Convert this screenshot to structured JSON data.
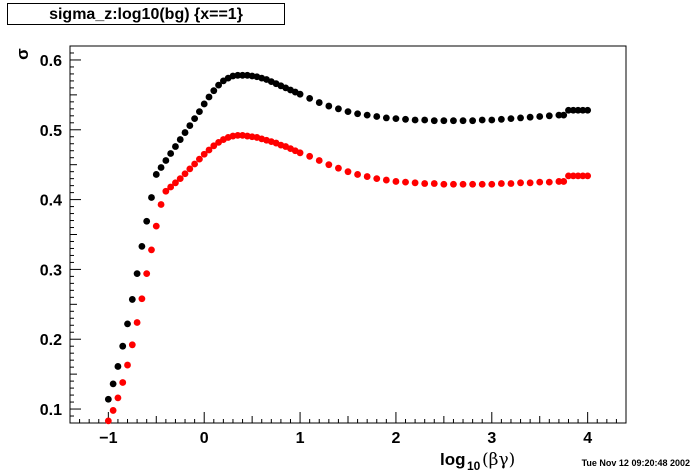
{
  "chart_data": {
    "type": "scatter",
    "title": "sigma_z:log10(bg) {x==1}",
    "xlabel": "log10(βγ)",
    "ylabel": "σ",
    "xlim": [
      -1.4,
      4.4
    ],
    "ylim": [
      0.08,
      0.62
    ],
    "x_ticks": [
      "−1",
      "0",
      "1",
      "2",
      "3",
      "4"
    ],
    "y_ticks": [
      "0.1",
      "0.2",
      "0.3",
      "0.4",
      "0.5",
      "0.6"
    ],
    "grid": false,
    "legend": "none",
    "timestamp": "Tue Nov 12 09:20:48 2002",
    "series": [
      {
        "color": "#000000",
        "points": [
          [
            -1.0,
            0.114
          ],
          [
            -0.95,
            0.136
          ],
          [
            -0.9,
            0.161
          ],
          [
            -0.85,
            0.19
          ],
          [
            -0.8,
            0.222
          ],
          [
            -0.75,
            0.257
          ],
          [
            -0.7,
            0.294
          ],
          [
            -0.65,
            0.333
          ],
          [
            -0.6,
            0.369
          ],
          [
            -0.55,
            0.403
          ],
          [
            -0.5,
            0.436
          ],
          [
            -0.45,
            0.446
          ],
          [
            -0.4,
            0.456
          ],
          [
            -0.35,
            0.466
          ],
          [
            -0.3,
            0.476
          ],
          [
            -0.25,
            0.486
          ],
          [
            -0.2,
            0.496
          ],
          [
            -0.15,
            0.506
          ],
          [
            -0.1,
            0.516
          ],
          [
            -0.05,
            0.526
          ],
          [
            0.0,
            0.537
          ],
          [
            0.05,
            0.547
          ],
          [
            0.1,
            0.556
          ],
          [
            0.15,
            0.564
          ],
          [
            0.2,
            0.57
          ],
          [
            0.25,
            0.574
          ],
          [
            0.3,
            0.577
          ],
          [
            0.35,
            0.578
          ],
          [
            0.4,
            0.578
          ],
          [
            0.45,
            0.578
          ],
          [
            0.5,
            0.577
          ],
          [
            0.55,
            0.576
          ],
          [
            0.6,
            0.574
          ],
          [
            0.65,
            0.572
          ],
          [
            0.7,
            0.569
          ],
          [
            0.75,
            0.566
          ],
          [
            0.8,
            0.563
          ],
          [
            0.85,
            0.56
          ],
          [
            0.9,
            0.557
          ],
          [
            0.95,
            0.554
          ],
          [
            1.0,
            0.551
          ],
          [
            1.1,
            0.545
          ],
          [
            1.2,
            0.539
          ],
          [
            1.3,
            0.534
          ],
          [
            1.4,
            0.53
          ],
          [
            1.5,
            0.526
          ],
          [
            1.6,
            0.523
          ],
          [
            1.7,
            0.521
          ],
          [
            1.8,
            0.519
          ],
          [
            1.9,
            0.517
          ],
          [
            2.0,
            0.516
          ],
          [
            2.1,
            0.515
          ],
          [
            2.2,
            0.514
          ],
          [
            2.3,
            0.514
          ],
          [
            2.4,
            0.513
          ],
          [
            2.5,
            0.513
          ],
          [
            2.6,
            0.513
          ],
          [
            2.7,
            0.513
          ],
          [
            2.8,
            0.513
          ],
          [
            2.9,
            0.514
          ],
          [
            3.0,
            0.514
          ],
          [
            3.1,
            0.515
          ],
          [
            3.2,
            0.516
          ],
          [
            3.3,
            0.517
          ],
          [
            3.4,
            0.518
          ],
          [
            3.5,
            0.519
          ],
          [
            3.6,
            0.52
          ],
          [
            3.7,
            0.521
          ],
          [
            3.75,
            0.521
          ],
          [
            3.8,
            0.528
          ],
          [
            3.85,
            0.528
          ],
          [
            3.9,
            0.528
          ],
          [
            3.95,
            0.528
          ],
          [
            4.0,
            0.528
          ]
        ]
      },
      {
        "color": "#ff0000",
        "points": [
          [
            -1.0,
            0.083
          ],
          [
            -0.95,
            0.098
          ],
          [
            -0.9,
            0.116
          ],
          [
            -0.85,
            0.138
          ],
          [
            -0.8,
            0.163
          ],
          [
            -0.75,
            0.192
          ],
          [
            -0.7,
            0.224
          ],
          [
            -0.65,
            0.258
          ],
          [
            -0.6,
            0.294
          ],
          [
            -0.55,
            0.328
          ],
          [
            -0.5,
            0.362
          ],
          [
            -0.45,
            0.393
          ],
          [
            -0.4,
            0.412
          ],
          [
            -0.35,
            0.418
          ],
          [
            -0.3,
            0.424
          ],
          [
            -0.25,
            0.43
          ],
          [
            -0.2,
            0.437
          ],
          [
            -0.15,
            0.444
          ],
          [
            -0.1,
            0.451
          ],
          [
            -0.05,
            0.458
          ],
          [
            0.0,
            0.465
          ],
          [
            0.05,
            0.471
          ],
          [
            0.1,
            0.477
          ],
          [
            0.15,
            0.482
          ],
          [
            0.2,
            0.486
          ],
          [
            0.25,
            0.489
          ],
          [
            0.3,
            0.491
          ],
          [
            0.35,
            0.492
          ],
          [
            0.4,
            0.492
          ],
          [
            0.45,
            0.491
          ],
          [
            0.5,
            0.49
          ],
          [
            0.55,
            0.489
          ],
          [
            0.6,
            0.487
          ],
          [
            0.65,
            0.485
          ],
          [
            0.7,
            0.483
          ],
          [
            0.75,
            0.481
          ],
          [
            0.8,
            0.478
          ],
          [
            0.85,
            0.476
          ],
          [
            0.9,
            0.473
          ],
          [
            0.95,
            0.47
          ],
          [
            1.0,
            0.467
          ],
          [
            1.1,
            0.462
          ],
          [
            1.2,
            0.456
          ],
          [
            1.3,
            0.45
          ],
          [
            1.4,
            0.445
          ],
          [
            1.5,
            0.44
          ],
          [
            1.6,
            0.436
          ],
          [
            1.7,
            0.433
          ],
          [
            1.8,
            0.43
          ],
          [
            1.9,
            0.428
          ],
          [
            2.0,
            0.426
          ],
          [
            2.1,
            0.425
          ],
          [
            2.2,
            0.424
          ],
          [
            2.3,
            0.423
          ],
          [
            2.4,
            0.423
          ],
          [
            2.5,
            0.422
          ],
          [
            2.6,
            0.422
          ],
          [
            2.7,
            0.422
          ],
          [
            2.8,
            0.422
          ],
          [
            2.9,
            0.422
          ],
          [
            3.0,
            0.422
          ],
          [
            3.1,
            0.423
          ],
          [
            3.2,
            0.423
          ],
          [
            3.3,
            0.424
          ],
          [
            3.4,
            0.424
          ],
          [
            3.5,
            0.425
          ],
          [
            3.6,
            0.425
          ],
          [
            3.7,
            0.426
          ],
          [
            3.75,
            0.426
          ],
          [
            3.8,
            0.434
          ],
          [
            3.85,
            0.434
          ],
          [
            3.9,
            0.434
          ],
          [
            3.95,
            0.434
          ],
          [
            4.0,
            0.434
          ]
        ]
      }
    ]
  }
}
